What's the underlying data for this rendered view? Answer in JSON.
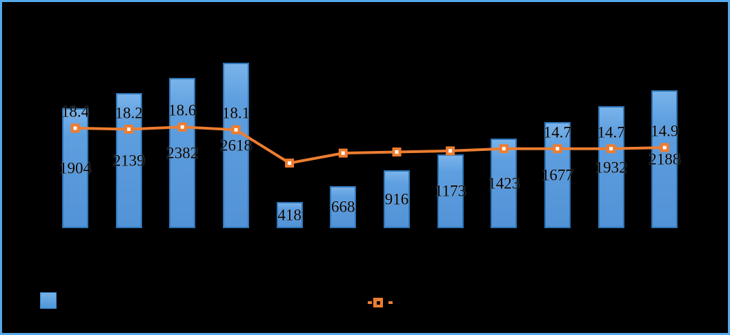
{
  "colors": {
    "background": "#000000",
    "frame_border": "#55A9EB",
    "bar_fill": "#5B9DDE",
    "bar_border": "#2E75B6",
    "line": "#ED7D31",
    "marker_fill": "#ED7D31",
    "marker_center": "#FFFFFF",
    "legend_marker_center": "#000000",
    "label_text": "#000000"
  },
  "chart_data": {
    "type": "combo (bar + line, line on secondary axis)",
    "title": "",
    "xlabel": "",
    "ylabel": "",
    "categories": [
      "",
      "",
      "",
      "",
      "",
      "",
      "",
      "",
      "",
      "",
      "",
      ""
    ],
    "axes_tick_labels_visible": false,
    "gridlines_visible": false,
    "legend_position": "bottom",
    "legend_text_visible": false,
    "series": [
      {
        "name": "bar-series",
        "type": "bar",
        "values": [
          1904,
          2139,
          2382,
          2618,
          418,
          668,
          916,
          1173,
          1423,
          1677,
          1932,
          2188
        ],
        "labels": [
          "1904",
          "2139",
          "2382",
          "2618",
          "418",
          "668",
          "916",
          "1173",
          "1423",
          "1677",
          "1932",
          "2188"
        ]
      },
      {
        "name": "line-series",
        "type": "line",
        "values": [
          18.4,
          18.2,
          18.6,
          18.1,
          12.1,
          13.9,
          14.1,
          14.3,
          14.7,
          14.7,
          14.7,
          14.9
        ],
        "labels": [
          "18.4",
          "18.2",
          "18.6",
          "18.1",
          "",
          "",
          "",
          "",
          "",
          "14.7",
          "14.7",
          "14.9"
        ],
        "estimated_value_indices": [
          4,
          5,
          6,
          7,
          8
        ]
      }
    ]
  },
  "legend": {
    "entries": [
      {
        "swatch": "blue-square",
        "label": ""
      },
      {
        "swatch": "orange-line-with-marker",
        "label": ""
      }
    ]
  }
}
